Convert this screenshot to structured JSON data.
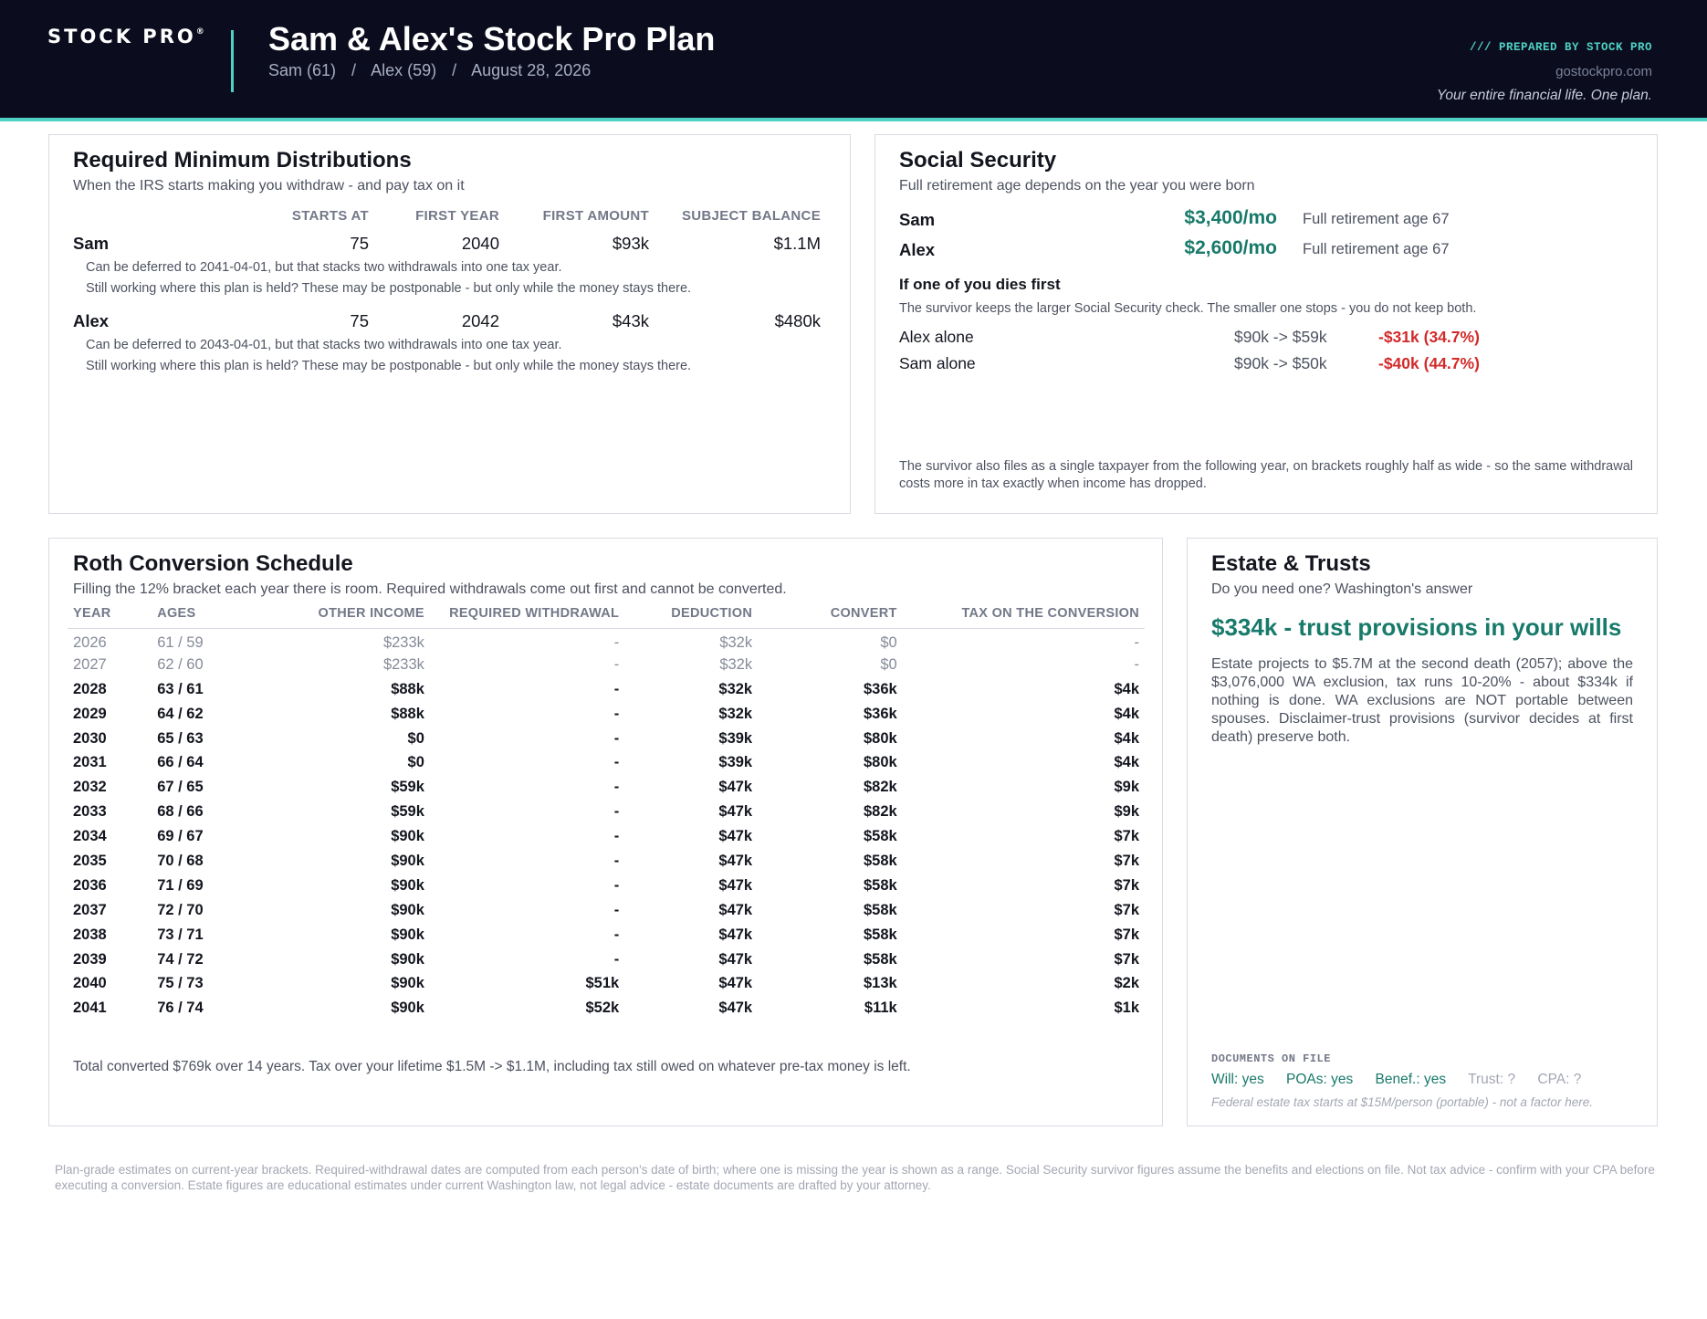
{
  "header": {
    "logo": "STOCK PRO",
    "logo_mark": "®",
    "title": "Sam & Alex's Stock Pro Plan",
    "person1": "Sam (61)",
    "person2": "Alex (59)",
    "date": "August 28, 2026",
    "separator": "/",
    "prepared_by": "/// PREPARED BY STOCK PRO",
    "site": "gostockpro.com",
    "tagline": "Your entire financial life. One plan."
  },
  "rmd": {
    "title": "Required Minimum Distributions",
    "subtitle": "When the IRS starts making you withdraw - and pay tax on it",
    "columns": [
      "STARTS AT",
      "FIRST YEAR",
      "FIRST AMOUNT",
      "SUBJECT BALANCE"
    ],
    "rows": [
      {
        "name": "Sam",
        "starts_at": "75",
        "first_year": "2040",
        "first_amount": "$93k",
        "subject_balance": "$1.1M",
        "note1": "Can be deferred to 2041-04-01, but that stacks two withdrawals into one tax year.",
        "note2": "Still working where this plan is held? These may be postponable - but only while the money stays there."
      },
      {
        "name": "Alex",
        "starts_at": "75",
        "first_year": "2042",
        "first_amount": "$43k",
        "subject_balance": "$480k",
        "note1": "Can be deferred to 2043-04-01, but that stacks two withdrawals into one tax year.",
        "note2": "Still working where this plan is held? These may be postponable - but only while the money stays there."
      }
    ]
  },
  "social_security": {
    "title": "Social Security",
    "subtitle": "Full retirement age depends on the year you were born",
    "people": [
      {
        "name": "Sam",
        "amount": "$3,400/mo",
        "fra": "Full retirement age 67"
      },
      {
        "name": "Alex",
        "amount": "$2,600/mo",
        "fra": "Full retirement age 67"
      }
    ],
    "survivor_heading": "If one of you dies first",
    "survivor_text": "The survivor keeps the larger Social Security check. The smaller one stops - you do not keep both.",
    "scenarios": [
      {
        "label": "Alex alone",
        "change": "$90k -> $59k",
        "loss": "-$31k (34.7%)"
      },
      {
        "label": "Sam alone",
        "change": "$90k -> $50k",
        "loss": "-$40k (44.7%)"
      }
    ],
    "footnote": "The survivor also files as a single taxpayer from the following year, on brackets roughly half as wide - so the same withdrawal costs more in tax exactly when income has dropped."
  },
  "roth": {
    "title": "Roth Conversion Schedule",
    "subtitle": "Filling the 12% bracket each year there is room. Required withdrawals come out first and cannot be converted.",
    "columns": [
      "YEAR",
      "AGES",
      "OTHER INCOME",
      "REQUIRED WITHDRAWAL",
      "DEDUCTION",
      "CONVERT",
      "TAX ON THE CONVERSION"
    ],
    "rows": [
      [
        "2026",
        "61 / 59",
        "$233k",
        "-",
        "$32k",
        "$0",
        "-"
      ],
      [
        "2027",
        "62 / 60",
        "$233k",
        "-",
        "$32k",
        "$0",
        "-"
      ],
      [
        "2028",
        "63 / 61",
        "$88k",
        "-",
        "$32k",
        "$36k",
        "$4k"
      ],
      [
        "2029",
        "64 / 62",
        "$88k",
        "-",
        "$32k",
        "$36k",
        "$4k"
      ],
      [
        "2030",
        "65 / 63",
        "$0",
        "-",
        "$39k",
        "$80k",
        "$4k"
      ],
      [
        "2031",
        "66 / 64",
        "$0",
        "-",
        "$39k",
        "$80k",
        "$4k"
      ],
      [
        "2032",
        "67 / 65",
        "$59k",
        "-",
        "$47k",
        "$82k",
        "$9k"
      ],
      [
        "2033",
        "68 / 66",
        "$59k",
        "-",
        "$47k",
        "$82k",
        "$9k"
      ],
      [
        "2034",
        "69 / 67",
        "$90k",
        "-",
        "$47k",
        "$58k",
        "$7k"
      ],
      [
        "2035",
        "70 / 68",
        "$90k",
        "-",
        "$47k",
        "$58k",
        "$7k"
      ],
      [
        "2036",
        "71 / 69",
        "$90k",
        "-",
        "$47k",
        "$58k",
        "$7k"
      ],
      [
        "2037",
        "72 / 70",
        "$90k",
        "-",
        "$47k",
        "$58k",
        "$7k"
      ],
      [
        "2038",
        "73 / 71",
        "$90k",
        "-",
        "$47k",
        "$58k",
        "$7k"
      ],
      [
        "2039",
        "74 / 72",
        "$90k",
        "-",
        "$47k",
        "$58k",
        "$7k"
      ],
      [
        "2040",
        "75 / 73",
        "$90k",
        "$51k",
        "$47k",
        "$13k",
        "$2k"
      ],
      [
        "2041",
        "76 / 74",
        "$90k",
        "$52k",
        "$47k",
        "$11k",
        "$1k"
      ]
    ],
    "dim_rows": 2,
    "footer": "Total converted $769k over 14 years.  Tax over your lifetime $1.5M -> $1.1M, including tax still owed on whatever pre-tax money is left."
  },
  "estate": {
    "title": "Estate & Trusts",
    "subtitle": "Do you need one? Washington's answer",
    "headline": "$334k - trust provisions in your wills",
    "body": "Estate projects to $5.7M at the second death (2057); above the $3,076,000 WA exclusion, tax runs 10-20% - about $334k if nothing is done. WA exclusions are NOT portable between spouses. Disclaimer-trust provisions (survivor decides at first death) preserve both.",
    "docs_label": "DOCUMENTS ON FILE",
    "docs": [
      {
        "label": "Will: yes",
        "status": "yes"
      },
      {
        "label": "POAs: yes",
        "status": "yes"
      },
      {
        "label": "Benef.: yes",
        "status": "yes"
      },
      {
        "label": "Trust: ?",
        "status": "unknown"
      },
      {
        "label": "CPA: ?",
        "status": "unknown"
      }
    ],
    "docs_note": "Federal estate tax starts at $15M/person (portable) - not a factor here."
  },
  "disclaimer": "Plan-grade estimates on current-year brackets. Required-withdrawal dates are computed from each person's date of birth; where one is missing the year is shown as a range. Social Security survivor figures assume the benefits and elections on file. Not tax advice - confirm with your CPA before executing a conversion. Estate figures are educational estimates under current Washington law, not legal advice - estate documents are drafted by your attorney.",
  "colors": {
    "header_bg": "#0b0d1e",
    "accent_teal": "#4fd1c5",
    "money_green": "#187a6a",
    "loss_red": "#d22a2a"
  }
}
